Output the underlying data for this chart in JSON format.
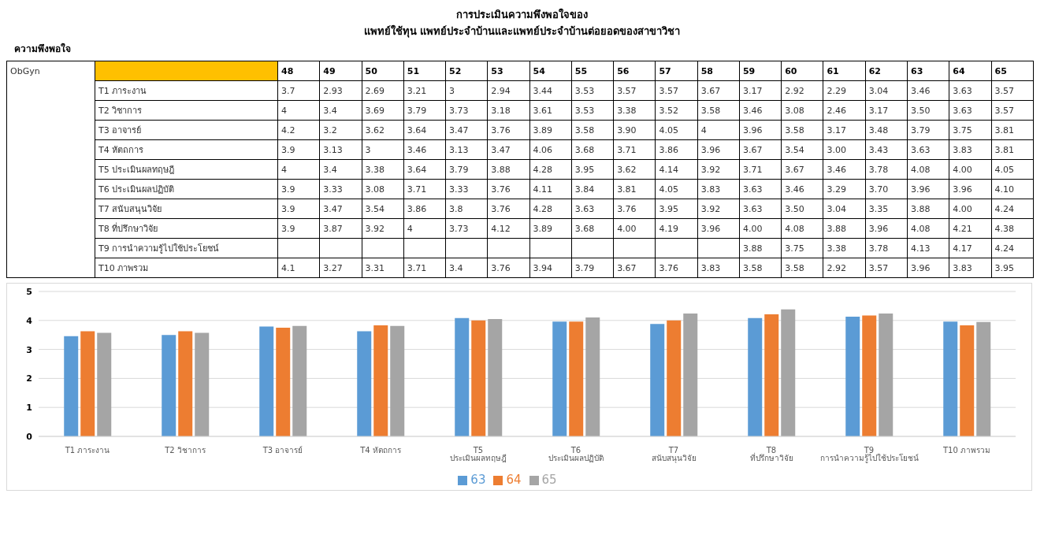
{
  "chart_data": [
    {
      "type": "heatmap",
      "title": "การประเมินความพึงพอใจของ",
      "subtitle": "แพทย์ใช้ทุน แพทย์ประจำบ้านและแพทย์ประจำบ้านต่อยอดของสาขาวิชา",
      "annotations": [
        "ความพึงพอใจ",
        "ObGyn"
      ],
      "categories": [
        "48",
        "49",
        "50",
        "51",
        "52",
        "53",
        "54",
        "55",
        "56",
        "57",
        "58",
        "59",
        "60",
        "61",
        "62",
        "63",
        "64",
        "65"
      ],
      "y_categories": [
        "T1 ภาระงาน",
        "T2 วิชาการ",
        "T3 อาจารย์",
        "T4  หัตถการ",
        "T5 ประเมินผลทฤษฎี",
        "T6  ประเมินผลปฏิบัติ",
        "T7  สนับสนุนวิจัย",
        "T8  ที่ปรึกษาวิจัย",
        "T9  การนำความรู้ไปใช้ประโยชน์",
        "T10 ภาพรวม"
      ],
      "cells": [
        [
          3.7,
          2.93,
          2.69,
          3.21,
          3,
          2.94,
          3.44,
          3.53,
          3.57,
          3.57,
          3.67,
          3.17,
          2.92,
          2.29,
          3.04,
          3.46,
          3.63,
          3.57
        ],
        [
          4,
          3.4,
          3.69,
          3.79,
          3.73,
          3.18,
          3.61,
          3.53,
          3.38,
          3.52,
          3.58,
          3.46,
          3.08,
          2.46,
          3.17,
          3.5,
          3.63,
          3.57
        ],
        [
          4.2,
          3.2,
          3.62,
          3.64,
          3.47,
          3.76,
          3.89,
          3.58,
          3.9,
          4.05,
          4,
          3.96,
          3.58,
          3.17,
          3.48,
          3.79,
          3.75,
          3.81
        ],
        [
          3.9,
          3.13,
          3,
          3.46,
          3.13,
          3.47,
          4.06,
          3.68,
          3.71,
          3.86,
          3.96,
          3.67,
          3.54,
          3,
          3.43,
          3.63,
          3.83,
          3.81
        ],
        [
          4,
          3.4,
          3.38,
          3.64,
          3.79,
          3.88,
          4.28,
          3.95,
          3.62,
          4.14,
          3.92,
          3.71,
          3.67,
          3.46,
          3.78,
          4.08,
          4,
          4.05
        ],
        [
          3.9,
          3.33,
          3.08,
          3.71,
          3.33,
          3.76,
          4.11,
          3.84,
          3.81,
          4.05,
          3.83,
          3.63,
          3.46,
          3.29,
          3.7,
          3.96,
          3.96,
          4.1
        ],
        [
          3.9,
          3.47,
          3.54,
          3.86,
          3.8,
          3.76,
          4.28,
          3.63,
          3.76,
          3.95,
          3.92,
          3.63,
          3.5,
          3.04,
          3.35,
          3.88,
          4,
          4.24
        ],
        [
          3.9,
          3.87,
          3.92,
          4,
          3.73,
          4.12,
          3.89,
          3.68,
          4,
          4.19,
          3.96,
          4,
          4.08,
          3.88,
          3.96,
          4.08,
          4.21,
          4.38
        ],
        [
          null,
          null,
          null,
          null,
          null,
          null,
          null,
          null,
          null,
          null,
          null,
          3.88,
          3.75,
          3.38,
          3.78,
          4.13,
          4.17,
          4.24
        ],
        [
          4.1,
          3.27,
          3.31,
          3.71,
          3.4,
          3.76,
          3.94,
          3.79,
          3.67,
          3.76,
          3.83,
          3.58,
          3.58,
          2.92,
          3.57,
          3.96,
          3.83,
          3.95
        ]
      ],
      "cell_labels": [
        [
          "3.7",
          "2.93",
          "2.69",
          "3.21",
          "3",
          "2.94",
          "3.44",
          "3.53",
          "3.57",
          "3.57",
          "3.67",
          "3.17",
          "2.92",
          "2.29",
          "3.04",
          "3.46",
          "3.63",
          "3.57"
        ],
        [
          "4",
          "3.4",
          "3.69",
          "3.79",
          "3.73",
          "3.18",
          "3.61",
          "3.53",
          "3.38",
          "3.52",
          "3.58",
          "3.46",
          "3.08",
          "2.46",
          "3.17",
          "3.50",
          "3.63",
          "3.57"
        ],
        [
          "4.2",
          "3.2",
          "3.62",
          "3.64",
          "3.47",
          "3.76",
          "3.89",
          "3.58",
          "3.90",
          "4.05",
          "4",
          "3.96",
          "3.58",
          "3.17",
          "3.48",
          "3.79",
          "3.75",
          "3.81"
        ],
        [
          "3.9",
          "3.13",
          "3",
          "3.46",
          "3.13",
          "3.47",
          "4.06",
          "3.68",
          "3.71",
          "3.86",
          "3.96",
          "3.67",
          "3.54",
          "3.00",
          "3.43",
          "3.63",
          "3.83",
          "3.81"
        ],
        [
          "4",
          "3.4",
          "3.38",
          "3.64",
          "3.79",
          "3.88",
          "4.28",
          "3.95",
          "3.62",
          "4.14",
          "3.92",
          "3.71",
          "3.67",
          "3.46",
          "3.78",
          "4.08",
          "4.00",
          "4.05"
        ],
        [
          "3.9",
          "3.33",
          "3.08",
          "3.71",
          "3.33",
          "3.76",
          "4.11",
          "3.84",
          "3.81",
          "4.05",
          "3.83",
          "3.63",
          "3.46",
          "3.29",
          "3.70",
          "3.96",
          "3.96",
          "4.10"
        ],
        [
          "3.9",
          "3.47",
          "3.54",
          "3.86",
          "3.8",
          "3.76",
          "4.28",
          "3.63",
          "3.76",
          "3.95",
          "3.92",
          "3.63",
          "3.50",
          "3.04",
          "3.35",
          "3.88",
          "4.00",
          "4.24"
        ],
        [
          "3.9",
          "3.87",
          "3.92",
          "4",
          "3.73",
          "4.12",
          "3.89",
          "3.68",
          "4.00",
          "4.19",
          "3.96",
          "4.00",
          "4.08",
          "3.88",
          "3.96",
          "4.08",
          "4.21",
          "4.38"
        ],
        [
          null,
          null,
          null,
          null,
          null,
          null,
          null,
          null,
          null,
          null,
          null,
          "3.88",
          "3.75",
          "3.38",
          "3.78",
          "4.13",
          "4.17",
          "4.24"
        ],
        [
          "4.1",
          "3.27",
          "3.31",
          "3.71",
          "3.4",
          "3.76",
          "3.94",
          "3.79",
          "3.67",
          "3.76",
          "3.83",
          "3.58",
          "3.58",
          "2.92",
          "3.57",
          "3.96",
          "3.83",
          "3.95"
        ]
      ]
    },
    {
      "type": "bar",
      "categories": [
        "T1 ภาระงาน",
        "T2 วิชาการ",
        "T3 อาจารย์",
        "T4  หัตถการ",
        "T5 ประเมินผลทฤษฎี",
        "T6  ประเมินผลปฏิบัติ",
        "T7  สนับสนุนวิจัย",
        "T8  ที่ปรึกษาวิจัย",
        "T9  การนำความรู้ไปใช้ประโยชน์",
        "T10 ภาพรวม"
      ],
      "series": [
        {
          "name": "63",
          "color": "#5b9bd5",
          "values": [
            3.46,
            3.5,
            3.79,
            3.63,
            4.08,
            3.96,
            3.88,
            4.08,
            4.13,
            3.96
          ]
        },
        {
          "name": "64",
          "color": "#ed7d31",
          "values": [
            3.63,
            3.63,
            3.75,
            3.83,
            4,
            3.96,
            4,
            4.21,
            4.17,
            3.83
          ]
        },
        {
          "name": "65",
          "color": "#a5a5a5",
          "values": [
            3.57,
            3.57,
            3.81,
            3.81,
            4.05,
            4.1,
            4.24,
            4.38,
            4.24,
            3.95
          ]
        }
      ],
      "ylim": [
        0,
        5
      ],
      "yticks": [
        0,
        1,
        2,
        3,
        4,
        5
      ],
      "grid": "y",
      "legend": "bottom"
    }
  ]
}
